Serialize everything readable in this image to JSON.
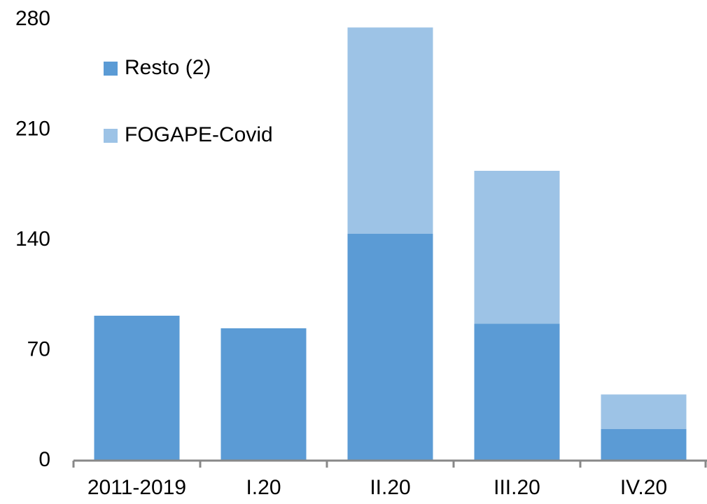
{
  "chart_data": {
    "type": "bar",
    "stacked": true,
    "categories": [
      "2011-2019",
      "I.20",
      "II.20",
      "III.20",
      "IV.20"
    ],
    "series": [
      {
        "name": "Resto (2)",
        "color": "#5b9bd5",
        "values": [
          92,
          84,
          144,
          87,
          20
        ]
      },
      {
        "name": "FOGAPE-Covid",
        "color": "#9dc3e6",
        "values": [
          null,
          null,
          131,
          97,
          22
        ]
      }
    ],
    "ylim": [
      0,
      280
    ],
    "yticks": [
      0,
      70,
      140,
      210,
      280
    ],
    "grid": false,
    "legend": "top-left"
  }
}
